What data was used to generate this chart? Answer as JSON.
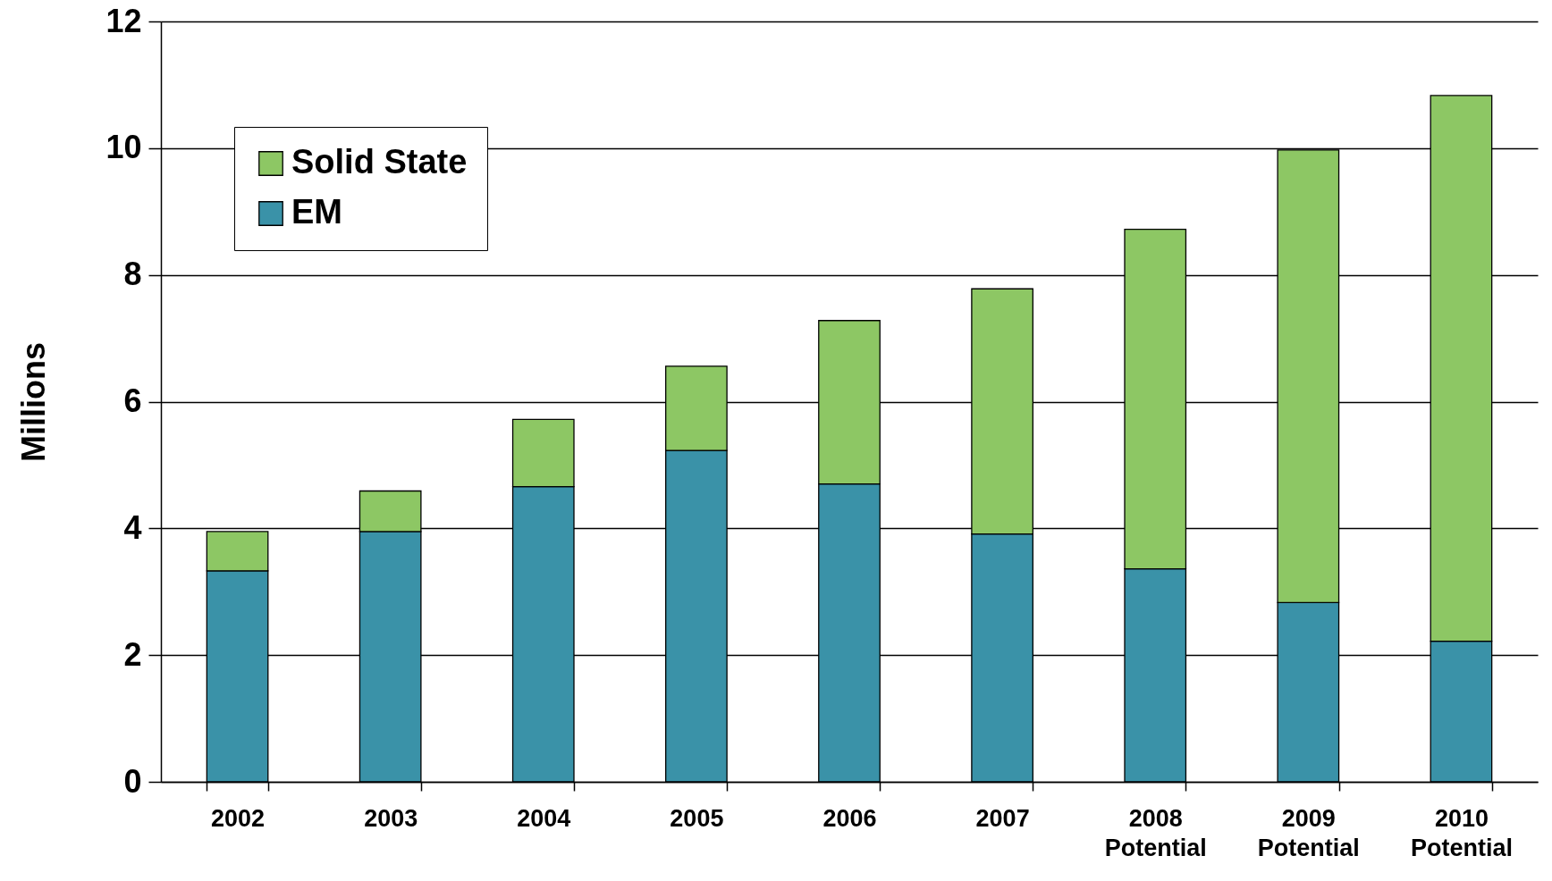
{
  "chart_data": {
    "type": "bar",
    "ylabel": "Millions",
    "stacked": true,
    "categories": [
      "2002",
      "2003",
      "2004",
      "2005",
      "2006",
      "2007",
      "2008\nPotential",
      "2009\nPotential",
      "2010\nPotential"
    ],
    "series": [
      {
        "name": "EM",
        "color": "#3a92a8",
        "values": [
          3.33,
          3.95,
          4.66,
          5.23,
          4.7,
          3.91,
          3.36,
          2.83,
          2.22
        ]
      },
      {
        "name": "Solid State",
        "color": "#8dc764",
        "values": [
          0.62,
          0.64,
          1.06,
          1.33,
          2.58,
          3.87,
          5.36,
          7.14,
          8.61
        ]
      }
    ],
    "ylim": [
      0,
      12
    ],
    "yticks": [
      0,
      2,
      4,
      6,
      8,
      10,
      12
    ],
    "grid": "y",
    "legend": "top left"
  }
}
